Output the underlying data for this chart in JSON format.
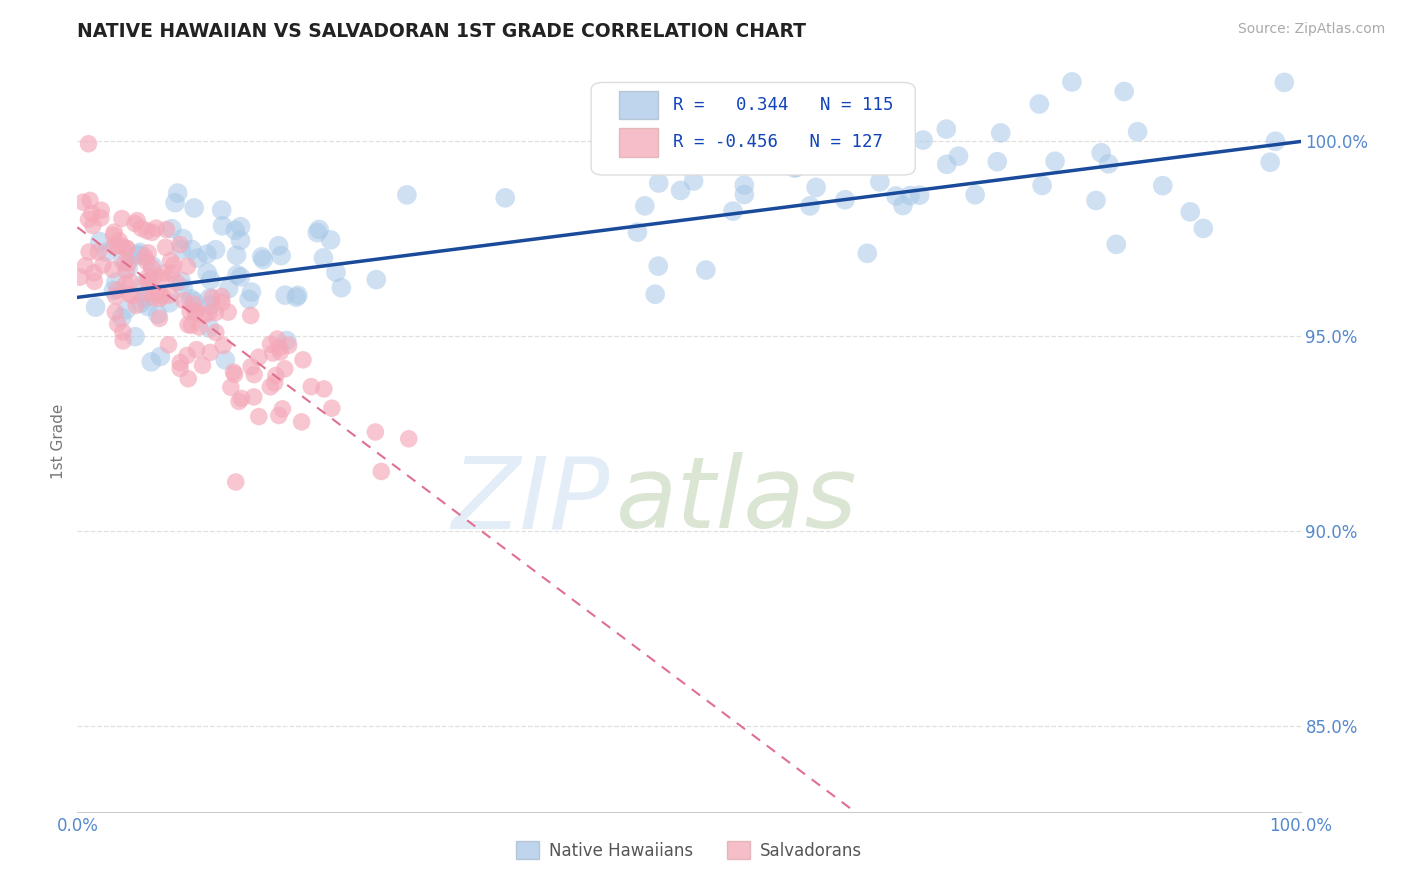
{
  "title": "NATIVE HAWAIIAN VS SALVADORAN 1ST GRADE CORRELATION CHART",
  "source": "Source: ZipAtlas.com",
  "ylabel": "1st Grade",
  "ytick_labels": [
    "85.0%",
    "90.0%",
    "95.0%",
    "100.0%"
  ],
  "ytick_values": [
    0.85,
    0.9,
    0.95,
    1.0
  ],
  "xlim": [
    0.0,
    1.0
  ],
  "ylim": [
    0.828,
    1.018
  ],
  "blue_color": "#a8c8e8",
  "blue_line_color": "#1a4a9a",
  "pink_color": "#f4a8b8",
  "pink_line_color": "#e07090",
  "blue_trend_start_x": 0.0,
  "blue_trend_start_y": 0.96,
  "blue_trend_end_x": 1.0,
  "blue_trend_end_y": 1.0,
  "pink_trend_start_x": 0.0,
  "pink_trend_start_y": 0.978,
  "pink_trend_end_x": 1.0,
  "pink_trend_end_y": 0.742,
  "background_color": "#ffffff",
  "grid_color": "#e0e0e0",
  "tick_color": "#5588cc",
  "legend_r_blue": "R =   0.344   N = 115",
  "legend_r_pink": "R = -0.456   N = 127",
  "source_color": "#aaaaaa",
  "axis_label_color": "#777777",
  "watermark_zip_color": "#c8ddf0",
  "watermark_atlas_color": "#b8cca8"
}
